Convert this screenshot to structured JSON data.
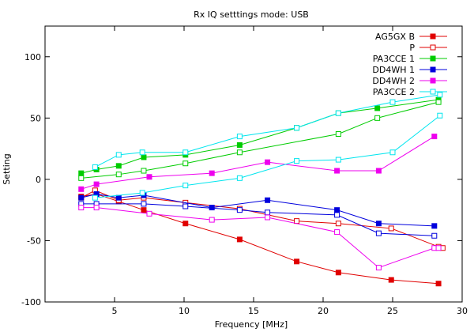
{
  "chart_data": {
    "type": "line",
    "title": "Rx IQ setttings mode: USB",
    "xlabel": "Frequency [MHz]",
    "ylabel": "Setting",
    "xlim": [
      0,
      30
    ],
    "ylim": [
      -100,
      125
    ],
    "x_ticks": [
      5,
      10,
      15,
      20,
      25,
      30
    ],
    "y_ticks": [
      -100,
      -50,
      0,
      50,
      100
    ],
    "grid": false,
    "legend_position": "top-right",
    "series": [
      {
        "name": "AG5GX B",
        "color": "#e00000",
        "marker": "filled-square",
        "x": [
          2.6,
          3.7,
          5.3,
          7.1,
          10.1,
          14.0,
          18.1,
          21.1,
          24.9,
          28.3
        ],
        "y": [
          -14,
          -12,
          -18,
          -25,
          -36,
          -49,
          -67,
          -76,
          -82,
          -85
        ]
      },
      {
        "name": "P",
        "color": "#e00000",
        "marker": "open-square",
        "x": [
          2.6,
          3.6,
          5.3,
          7.1,
          10.1,
          14.0,
          18.1,
          21.1,
          24.9,
          28.3,
          28.6
        ],
        "y": [
          -15,
          -9,
          -17,
          -15,
          -19,
          -24,
          -34,
          -36,
          -40,
          -55,
          -56
        ]
      },
      {
        "name": "PA3CCE 1",
        "color": "#00cc00",
        "marker": "filled-square",
        "x": [
          2.6,
          3.7,
          5.3,
          7.1,
          10.1,
          14.0,
          18.1,
          21.1,
          23.9,
          28.3
        ],
        "y": [
          5,
          8,
          11,
          18,
          20,
          28,
          42,
          54,
          58,
          65
        ]
      },
      {
        "name": "PA3CCE 2",
        "color": "#00cc00",
        "marker": "open-square",
        "x": [
          2.6,
          5.3,
          7.1,
          10.1,
          14.0,
          21.1,
          23.9,
          28.3
        ],
        "y": [
          1,
          4,
          7,
          13,
          22,
          37,
          50,
          63
        ]
      },
      {
        "name": "DD4WH 1",
        "color": "#0000dd",
        "marker": "filled-square",
        "x": [
          2.6,
          3.7,
          5.3,
          7.1,
          12.0,
          16.0,
          21.0,
          24.0,
          28.0
        ],
        "y": [
          -15,
          -12,
          -15,
          -13,
          -23,
          -17,
          -25,
          -36,
          -38
        ]
      },
      {
        "name": "DD4WH 2",
        "color": "#0000dd",
        "marker": "open-square",
        "x": [
          2.6,
          3.7,
          7.1,
          10.1,
          14.0,
          16.0,
          21.0,
          24.0,
          28.0
        ],
        "y": [
          -20,
          -20,
          -20,
          -22,
          -25,
          -27,
          -29,
          -44,
          -46
        ]
      },
      {
        "name": "DD4WH 2",
        "color": "#ee00ee",
        "marker": "filled-square",
        "x": [
          2.6,
          3.7,
          7.5,
          12.0,
          16.0,
          21.0,
          24.0,
          28.0
        ],
        "y": [
          -8,
          -4,
          2,
          5,
          14,
          7,
          7,
          35
        ]
      },
      {
        "name": "",
        "color": "#ee00ee",
        "marker": "open-square",
        "x": [
          2.6,
          3.7,
          7.5,
          12.0,
          16.0,
          21.0,
          24.0,
          28.0,
          28.3
        ],
        "y": [
          -23,
          -23,
          -28,
          -33,
          -31,
          -43,
          -72,
          -56,
          -56
        ]
      },
      {
        "name": "PA3CCE 2",
        "color": "#00e5ee",
        "marker": "open-square",
        "x": [
          3.6,
          5.3,
          7.0,
          10.1,
          14.0,
          18.1,
          21.1,
          25.0,
          28.4
        ],
        "y": [
          10,
          20,
          22,
          22,
          35,
          42,
          54,
          63,
          69
        ]
      },
      {
        "name": "",
        "color": "#00e5ee",
        "marker": "open-square",
        "x": [
          3.6,
          7.0,
          10.1,
          14.0,
          18.1,
          21.1,
          25.0,
          28.4
        ],
        "y": [
          -15,
          -11,
          -5,
          1,
          15,
          16,
          22,
          52
        ]
      }
    ],
    "legend": [
      {
        "label": "AG5GX B",
        "color": "#e00000",
        "marker": "filled-square"
      },
      {
        "label": "P",
        "color": "#e00000",
        "marker": "open-square"
      },
      {
        "label": "PA3CCE 1",
        "color": "#00cc00",
        "marker": "filled-square"
      },
      {
        "label": "DD4WH 1",
        "color": "#0000dd",
        "marker": "filled-square"
      },
      {
        "label": "DD4WH 2",
        "color": "#ee00ee",
        "marker": "filled-square"
      },
      {
        "label": "PA3CCE 2",
        "color": "#00e5ee",
        "marker": "open-square"
      }
    ]
  }
}
